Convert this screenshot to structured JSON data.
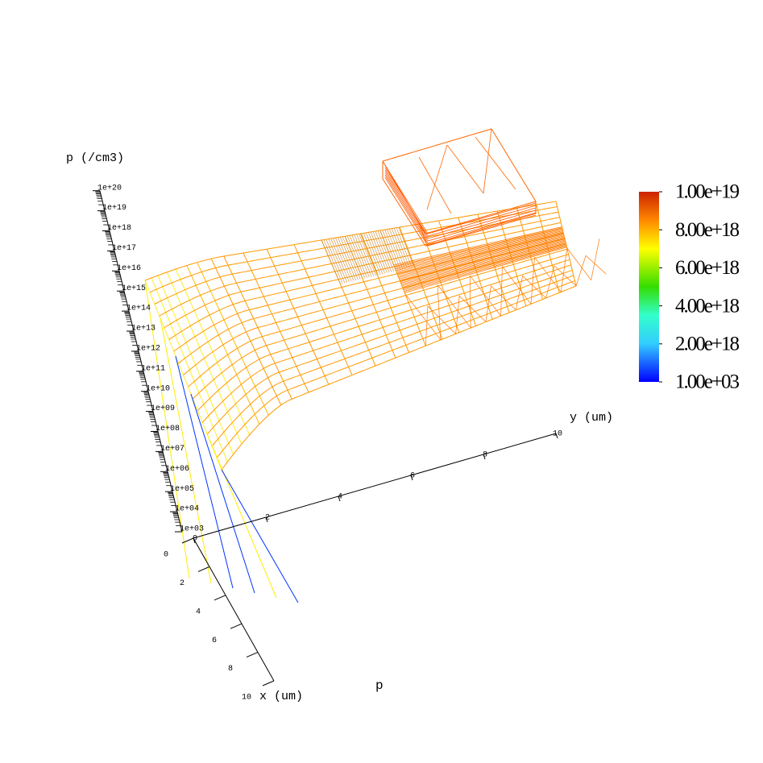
{
  "chart_data": {
    "type": "surface3d",
    "title": "p",
    "z_label": "p (/cm3)",
    "x_label": "x (um)",
    "y_label": "y (um)",
    "zscale": "log",
    "xlim": [
      0,
      10
    ],
    "ylim": [
      0,
      10
    ],
    "zlim": [
      1000,
      1e+20
    ],
    "xticks": [
      0,
      2,
      4,
      6,
      8,
      10
    ],
    "yticks": [
      0,
      2,
      4,
      6,
      8,
      10
    ],
    "zticks": [
      {
        "value": 1000,
        "label": "1e+03"
      },
      {
        "value": 10000.0,
        "label": "1e+04"
      },
      {
        "value": 100000.0,
        "label": "1e+05"
      },
      {
        "value": 1000000.0,
        "label": "1e+06"
      },
      {
        "value": 10000000.0,
        "label": "1e+07"
      },
      {
        "value": 100000000.0,
        "label": "1e+08"
      },
      {
        "value": 1000000000.0,
        "label": "1e+09"
      },
      {
        "value": 10000000000.0,
        "label": "1e+10"
      },
      {
        "value": 100000000000.0,
        "label": "1e+11"
      },
      {
        "value": 1000000000000.0,
        "label": "1e+12"
      },
      {
        "value": 10000000000000.0,
        "label": "1e+13"
      },
      {
        "value": 100000000000000.0,
        "label": "1e+14"
      },
      {
        "value": 1000000000000000.0,
        "label": "1e+15"
      },
      {
        "value": 1e+16,
        "label": "1e+16"
      },
      {
        "value": 1e+17,
        "label": "1e+17"
      },
      {
        "value": 1e+18,
        "label": "1e+18"
      },
      {
        "value": 1e+19,
        "label": "1e+19"
      },
      {
        "value": 1e+20,
        "label": "1e+20"
      }
    ],
    "clim": [
      1000,
      1e+19
    ],
    "cticks": [
      {
        "value": 1e+19,
        "label": "1.00e+19"
      },
      {
        "value": 8e+18,
        "label": "8.00e+18"
      },
      {
        "value": 6e+18,
        "label": "6.00e+18"
      },
      {
        "value": 4e+18,
        "label": "4.00e+18"
      },
      {
        "value": 2e+18,
        "label": "2.00e+18"
      },
      {
        "value": 1000,
        "label": "1.00e+03"
      }
    ]
  }
}
